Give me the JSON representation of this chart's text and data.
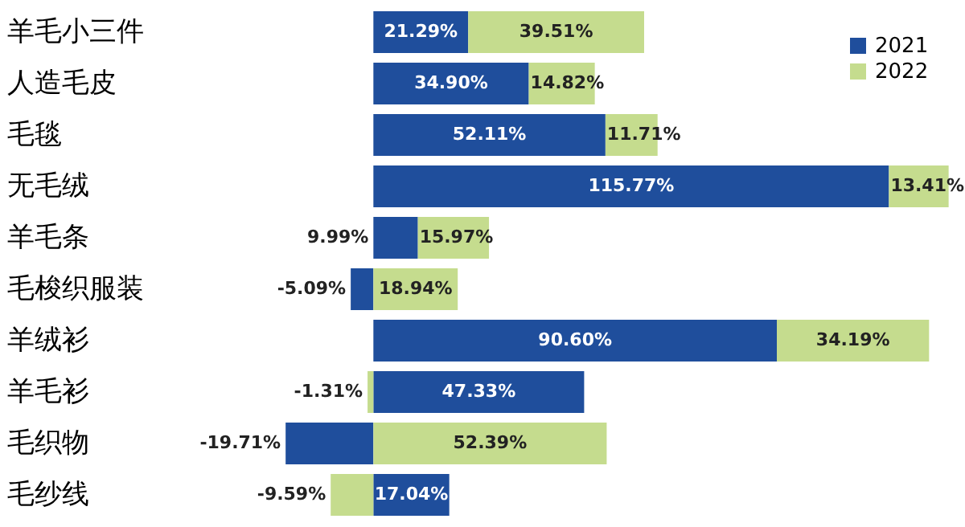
{
  "chart_data": {
    "type": "bar",
    "orientation": "horizontal",
    "stacked": true,
    "legend": "top right",
    "categories": [
      "羊毛小三件",
      "人造毛皮",
      "毛毯",
      "无毛绒",
      "羊毛条",
      "毛梭织服装",
      "羊绒衫",
      "羊毛衫",
      "毛织物",
      "毛纱线"
    ],
    "series": [
      {
        "name": "2021",
        "color": "#1f4e9c",
        "values": [
          21.29,
          34.9,
          52.11,
          115.77,
          9.99,
          -5.09,
          90.6,
          47.33,
          -19.71,
          17.04
        ],
        "value_labels": [
          "21.29%",
          "34.90%",
          "52.11%",
          "115.77%",
          "9.99%",
          "-5.09%",
          "90.60%",
          "47.33%",
          "-19.71%",
          "17.04%"
        ]
      },
      {
        "name": "2022",
        "color": "#c5dc8e",
        "values": [
          39.51,
          14.82,
          11.71,
          13.41,
          15.97,
          18.94,
          34.19,
          -1.31,
          52.39,
          -9.59
        ],
        "value_labels": [
          "39.51%",
          "14.82%",
          "11.71%",
          "13.41%",
          "15.97%",
          "18.94%",
          "34.19%",
          "-1.31%",
          "52.39%",
          "-9.59%"
        ]
      }
    ]
  }
}
